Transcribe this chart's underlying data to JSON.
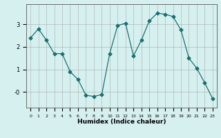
{
  "x": [
    0,
    1,
    2,
    3,
    4,
    5,
    6,
    7,
    8,
    9,
    10,
    11,
    12,
    13,
    14,
    15,
    16,
    17,
    18,
    19,
    20,
    21,
    22,
    23
  ],
  "y": [
    2.4,
    2.8,
    2.3,
    1.7,
    1.7,
    0.9,
    0.55,
    -0.15,
    -0.2,
    -0.12,
    1.7,
    2.95,
    3.05,
    1.6,
    2.3,
    3.15,
    3.5,
    3.45,
    3.35,
    2.75,
    1.5,
    1.05,
    0.4,
    -0.3
  ],
  "line_color": "#1a7070",
  "marker": "D",
  "marker_size": 2.5,
  "bg_color": "#d6f0f0",
  "grid_color": "#aaaaaa",
  "xlabel": "Humidex (Indice chaleur)",
  "xlim": [
    -0.5,
    23.5
  ],
  "ylim": [
    -0.7,
    3.9
  ],
  "xtick_labels": [
    "0",
    "1",
    "2",
    "3",
    "4",
    "5",
    "6",
    "7",
    "8",
    "9",
    "10",
    "11",
    "12",
    "13",
    "14",
    "15",
    "16",
    "17",
    "18",
    "19",
    "20",
    "21",
    "22",
    "23"
  ],
  "figsize": [
    3.2,
    2.0
  ],
  "dpi": 100
}
